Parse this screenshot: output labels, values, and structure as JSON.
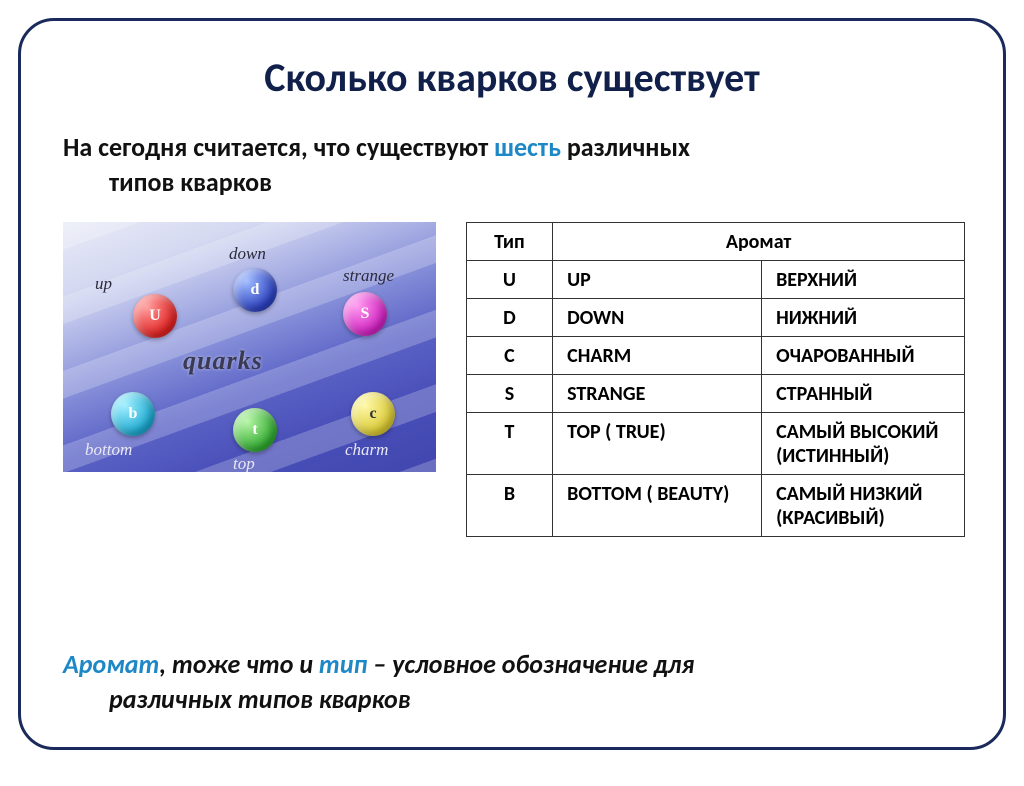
{
  "title": "Сколько кварков существует",
  "intro": {
    "prefix": "На сегодня считается, что существуют ",
    "six": "шесть",
    "middle": " различных",
    "line2": "типов кварков"
  },
  "illustration": {
    "center": "quarks",
    "quarks": {
      "u": "U",
      "d": "d",
      "s": "S",
      "b": "b",
      "t": "t",
      "c": "c"
    },
    "labels": {
      "up": "up",
      "down": "down",
      "strange": "strange",
      "bottom": "bottom",
      "top": "top",
      "charm": "charm"
    }
  },
  "table": {
    "headers": {
      "type": "Тип",
      "aroma": "Аромат"
    },
    "rows": [
      {
        "type": "U",
        "en": "UP",
        "ru": "ВЕРХНИЙ"
      },
      {
        "type": "D",
        "en": "DOWN",
        "ru": "НИЖНИЙ"
      },
      {
        "type": "C",
        "en": "CHARM",
        "ru": "ОЧАРОВАННЫЙ"
      },
      {
        "type": "S",
        "en": "STRANGE",
        "ru": "СТРАННЫЙ"
      },
      {
        "type": "T",
        "en": "TOP ( TRUE)",
        "ru": "САМЫЙ ВЫСОКИЙ (ИСТИННЫЙ)"
      },
      {
        "type": "B",
        "en": "BOTTOM ( BEAUTY)",
        "ru": "САМЫЙ НИЗКИЙ (КРАСИВЫЙ)"
      }
    ]
  },
  "footer": {
    "aroma": "Аромат",
    "sep1": ", тоже что и ",
    "tip": "тип",
    "rest1": " – условное обозначение для",
    "line2": "различных типов кварков"
  },
  "colors": {
    "frame_border": "#1a2a5c",
    "title_color": "#10204a",
    "accent": "#1e88c7"
  }
}
